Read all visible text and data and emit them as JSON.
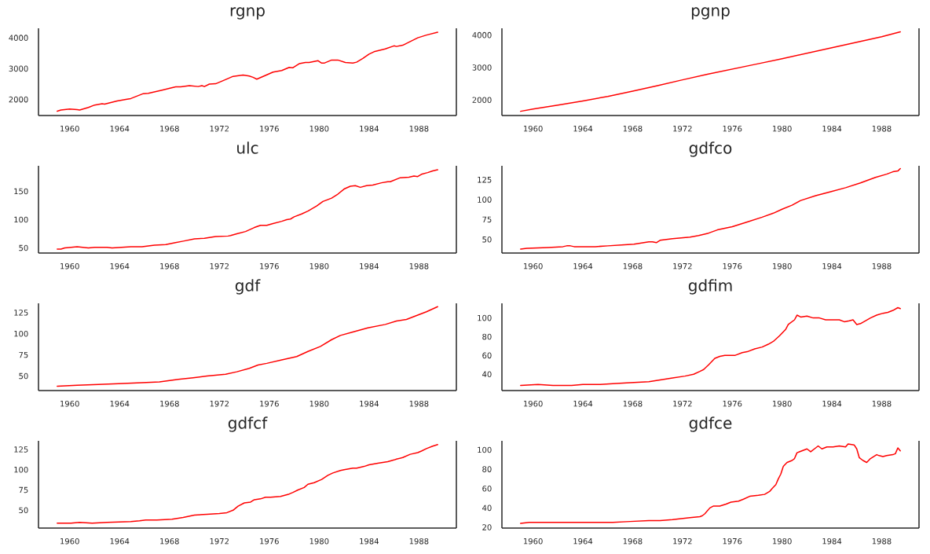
{
  "chart_data": [
    {
      "type": "line",
      "title": "rgnp",
      "color": "#ff0000",
      "xlim": [
        1957.5,
        1991.0
      ],
      "xticks": [
        1960,
        1964,
        1968,
        1972,
        1976,
        1980,
        1984,
        1988
      ],
      "ylim": [
        1480,
        4310
      ],
      "yticks": [
        2000,
        3000,
        4000
      ],
      "x": [
        1959.0,
        1959.3,
        1960.0,
        1960.6,
        1960.8,
        1961.5,
        1962.0,
        1962.6,
        1962.8,
        1963.8,
        1964.6,
        1964.9,
        1965.9,
        1966.3,
        1967.4,
        1968.1,
        1968.5,
        1968.9,
        1969.6,
        1970.3,
        1970.6,
        1970.8,
        1971.2,
        1971.7,
        1972.3,
        1973.1,
        1973.9,
        1974.4,
        1974.7,
        1975.0,
        1975.8,
        1976.3,
        1977.0,
        1977.6,
        1977.9,
        1978.4,
        1978.9,
        1979.2,
        1979.9,
        1980.2,
        1980.4,
        1981.0,
        1981.5,
        1982.1,
        1982.7,
        1983.0,
        1983.5,
        1984.0,
        1984.4,
        1985.3,
        1986.0,
        1986.2,
        1986.7,
        1987.4,
        1987.9,
        1988.6,
        1989.5
      ],
      "values": [
        1620,
        1660,
        1690,
        1670,
        1660,
        1740,
        1820,
        1860,
        1850,
        1950,
        2010,
        2030,
        2190,
        2200,
        2300,
        2370,
        2410,
        2410,
        2450,
        2420,
        2450,
        2420,
        2500,
        2510,
        2610,
        2750,
        2790,
        2760,
        2720,
        2660,
        2800,
        2890,
        2940,
        3040,
        3030,
        3160,
        3200,
        3200,
        3260,
        3180,
        3180,
        3280,
        3280,
        3200,
        3180,
        3210,
        3330,
        3470,
        3550,
        3640,
        3740,
        3720,
        3760,
        3900,
        4000,
        4090,
        4180
      ]
    },
    {
      "type": "line",
      "title": "pgnp",
      "color": "#ff0000",
      "xlim": [
        1957.5,
        1991.0
      ],
      "xticks": [
        1960,
        1964,
        1968,
        1972,
        1976,
        1980,
        1984,
        1988
      ],
      "ylim": [
        1520,
        4210
      ],
      "yticks": [
        2000,
        3000,
        4000
      ],
      "x": [
        1959.0,
        1960.0,
        1962.0,
        1964.0,
        1966.0,
        1968.0,
        1970.0,
        1972.0,
        1974.0,
        1976.0,
        1978.0,
        1980.0,
        1982.0,
        1984.0,
        1986.0,
        1988.0,
        1989.5
      ],
      "values": [
        1650,
        1720,
        1840,
        1970,
        2110,
        2270,
        2440,
        2620,
        2790,
        2950,
        3110,
        3270,
        3440,
        3610,
        3780,
        3950,
        4100
      ]
    },
    {
      "type": "line",
      "title": "ulc",
      "color": "#ff0000",
      "xlim": [
        1957.5,
        1991.0
      ],
      "xticks": [
        1960,
        1964,
        1968,
        1972,
        1976,
        1980,
        1984,
        1988
      ],
      "ylim": [
        41,
        195
      ],
      "yticks": [
        50,
        100,
        150
      ],
      "x": [
        1959.0,
        1959.3,
        1959.6,
        1960.6,
        1961.5,
        1962.0,
        1963.0,
        1963.4,
        1964.9,
        1965.8,
        1966.8,
        1967.7,
        1968.4,
        1969.1,
        1970.0,
        1970.8,
        1971.7,
        1972.7,
        1972.9,
        1973.4,
        1974.1,
        1974.8,
        1975.3,
        1975.8,
        1976.3,
        1977.0,
        1977.4,
        1977.7,
        1978.0,
        1978.6,
        1979.1,
        1979.8,
        1980.3,
        1981.0,
        1981.5,
        1982.0,
        1982.5,
        1982.9,
        1983.3,
        1983.8,
        1984.3,
        1985.0,
        1985.5,
        1985.7,
        1986.5,
        1987.2,
        1987.6,
        1987.9,
        1988.2,
        1988.7,
        1989.1,
        1989.5
      ],
      "values": [
        48,
        48,
        50,
        52,
        50,
        51,
        51,
        50,
        52,
        52,
        55,
        56,
        59,
        62,
        66,
        67,
        70,
        71,
        72,
        75,
        79,
        86,
        90,
        90,
        93,
        97,
        100,
        101,
        105,
        110,
        115,
        124,
        132,
        138,
        145,
        154,
        159,
        160,
        157,
        160,
        161,
        165,
        167,
        167,
        174,
        175,
        177,
        176,
        180,
        183,
        186,
        188
      ]
    },
    {
      "type": "line",
      "title": "gdfco",
      "color": "#ff0000",
      "xlim": [
        1957.5,
        1991.0
      ],
      "xticks": [
        1960,
        1964,
        1968,
        1972,
        1976,
        1980,
        1984,
        1988
      ],
      "ylim": [
        33,
        142.5
      ],
      "yticks": [
        50,
        75,
        100,
        125
      ],
      "x": [
        1959.0,
        1959.5,
        1961.2,
        1962.4,
        1962.7,
        1963.0,
        1963.3,
        1965.0,
        1966.0,
        1967.1,
        1968.1,
        1969.3,
        1969.6,
        1969.9,
        1970.2,
        1971.2,
        1972.6,
        1973.3,
        1974.1,
        1974.8,
        1976.0,
        1977.2,
        1978.4,
        1979.3,
        1980.0,
        1980.8,
        1981.5,
        1982.7,
        1983.9,
        1985.1,
        1986.3,
        1987.5,
        1988.4,
        1988.9,
        1989.3,
        1989.5
      ],
      "values": [
        38,
        39,
        40,
        41,
        42,
        42,
        41,
        41,
        42,
        43,
        44,
        47,
        47,
        46,
        49,
        51,
        53,
        55,
        58,
        62,
        66,
        72,
        78,
        83,
        88,
        93,
        99,
        105,
        110,
        115,
        121,
        128,
        132,
        135,
        136,
        139
      ]
    },
    {
      "type": "line",
      "title": "gdf",
      "color": "#ff0000",
      "xlim": [
        1957.5,
        1991.0
      ],
      "xticks": [
        1960,
        1964,
        1968,
        1972,
        1976,
        1980,
        1984,
        1988
      ],
      "ylim": [
        32.8,
        136
      ],
      "yticks": [
        50,
        75,
        100,
        125
      ],
      "x": [
        1959.0,
        1960.6,
        1962.3,
        1963.9,
        1965.8,
        1967.2,
        1968.7,
        1969.9,
        1971.0,
        1972.5,
        1973.4,
        1974.4,
        1975.1,
        1975.8,
        1977.0,
        1978.2,
        1979.1,
        1980.1,
        1981.0,
        1981.7,
        1982.7,
        1983.9,
        1985.3,
        1986.2,
        1987.0,
        1987.9,
        1988.6,
        1989.5
      ],
      "values": [
        38,
        39,
        40,
        41,
        42,
        43,
        46,
        48,
        50,
        52,
        55,
        59,
        63,
        65,
        69,
        73,
        79,
        85,
        93,
        98,
        102,
        107,
        111,
        115,
        117,
        122,
        126,
        132
      ]
    },
    {
      "type": "line",
      "title": "gdfim",
      "color": "#ff0000",
      "xlim": [
        1957.5,
        1991.0
      ],
      "xticks": [
        1960,
        1964,
        1968,
        1972,
        1976,
        1980,
        1984,
        1988
      ],
      "ylim": [
        22.6,
        115.6
      ],
      "yticks": [
        40,
        60,
        80,
        100
      ],
      "x": [
        1959.0,
        1960.4,
        1961.6,
        1962.3,
        1963.1,
        1964.0,
        1965.4,
        1966.4,
        1967.8,
        1969.3,
        1970.2,
        1971.2,
        1972.2,
        1972.9,
        1973.4,
        1973.7,
        1974.1,
        1974.6,
        1975.0,
        1975.4,
        1975.8,
        1976.2,
        1976.8,
        1977.2,
        1977.8,
        1978.4,
        1978.9,
        1979.3,
        1979.8,
        1980.3,
        1980.5,
        1981.0,
        1981.2,
        1981.5,
        1982.0,
        1982.5,
        1983.0,
        1983.5,
        1984.0,
        1984.6,
        1985.0,
        1985.4,
        1985.7,
        1986.0,
        1986.3,
        1986.7,
        1987.1,
        1987.6,
        1988.1,
        1988.5,
        1988.9,
        1989.3,
        1989.5
      ],
      "values": [
        28,
        29,
        28,
        28,
        28,
        29,
        29,
        30,
        31,
        32,
        34,
        36,
        38,
        40,
        43,
        45,
        50,
        57,
        59,
        60,
        60,
        60,
        63,
        64,
        67,
        69,
        72,
        75,
        81,
        88,
        93,
        98,
        103,
        101,
        102,
        100,
        100,
        98,
        98,
        98,
        96,
        97,
        98,
        93,
        94,
        97,
        100,
        103,
        105,
        106,
        108,
        111,
        110
      ]
    },
    {
      "type": "line",
      "title": "gdfcf",
      "color": "#ff0000",
      "xlim": [
        1957.5,
        1991.0
      ],
      "xticks": [
        1960,
        1964,
        1968,
        1972,
        1976,
        1980,
        1984,
        1988
      ],
      "ylim": [
        28,
        135.6
      ],
      "yticks": [
        50,
        75,
        100,
        125
      ],
      "x": [
        1959.0,
        1960.1,
        1960.8,
        1961.8,
        1963.0,
        1964.9,
        1965.6,
        1966.1,
        1967.0,
        1968.2,
        1969.1,
        1970.0,
        1971.0,
        1972.0,
        1972.6,
        1973.1,
        1973.5,
        1974.0,
        1974.5,
        1974.8,
        1975.3,
        1975.7,
        1976.1,
        1976.9,
        1977.6,
        1977.9,
        1978.3,
        1978.8,
        1979.1,
        1979.6,
        1980.2,
        1980.7,
        1981.1,
        1981.7,
        1982.0,
        1982.7,
        1983.0,
        1983.3,
        1983.6,
        1984.0,
        1984.7,
        1985.5,
        1986.0,
        1986.2,
        1986.7,
        1987.3,
        1987.9,
        1988.2,
        1988.6,
        1989.1,
        1989.5
      ],
      "values": [
        34,
        34,
        35,
        34,
        35,
        36,
        37,
        38,
        38,
        39,
        41,
        44,
        45,
        46,
        47,
        50,
        55,
        59,
        60,
        63,
        64,
        66,
        66,
        67,
        70,
        72,
        75,
        78,
        82,
        84,
        88,
        93,
        96,
        99,
        100,
        102,
        102,
        103,
        104,
        106,
        108,
        110,
        112,
        113,
        115,
        119,
        121,
        123,
        126,
        129,
        131
      ]
    },
    {
      "type": "line",
      "title": "gdfce",
      "color": "#ff0000",
      "xlim": [
        1957.5,
        1991.0
      ],
      "xticks": [
        1960,
        1964,
        1968,
        1972,
        1976,
        1980,
        1984,
        1988
      ],
      "ylim": [
        19.2,
        109.3
      ],
      "yticks": [
        20,
        40,
        60,
        80,
        100
      ],
      "x": [
        1959.0,
        1959.7,
        1960.7,
        1961.4,
        1961.6,
        1962.8,
        1964.0,
        1965.0,
        1966.4,
        1967.8,
        1969.3,
        1970.2,
        1971.2,
        1971.9,
        1972.6,
        1973.4,
        1973.6,
        1973.8,
        1974.2,
        1974.5,
        1975.0,
        1975.5,
        1975.9,
        1976.5,
        1976.9,
        1977.4,
        1978.1,
        1978.6,
        1979.0,
        1979.2,
        1979.5,
        1979.7,
        1979.9,
        1980.1,
        1980.4,
        1980.8,
        1981.0,
        1981.2,
        1981.6,
        1982.0,
        1982.3,
        1982.7,
        1982.9,
        1983.2,
        1983.6,
        1984.1,
        1984.6,
        1985.1,
        1985.3,
        1985.8,
        1986.0,
        1986.2,
        1986.5,
        1986.8,
        1987.1,
        1987.6,
        1987.8,
        1988.1,
        1988.4,
        1988.9,
        1989.1,
        1989.3,
        1989.5
      ],
      "values": [
        24,
        25,
        25,
        25,
        25,
        25,
        25,
        25,
        25,
        26,
        27,
        27,
        28,
        29,
        30,
        31,
        32,
        34,
        40,
        42,
        42,
        44,
        46,
        47,
        49,
        52,
        53,
        54,
        57,
        60,
        64,
        70,
        75,
        83,
        87,
        89,
        91,
        97,
        99,
        101,
        98,
        102,
        104,
        101,
        103,
        103,
        104,
        103,
        106,
        105,
        101,
        92,
        89,
        87,
        91,
        95,
        94,
        93,
        94,
        95,
        96,
        102,
        99
      ]
    }
  ]
}
